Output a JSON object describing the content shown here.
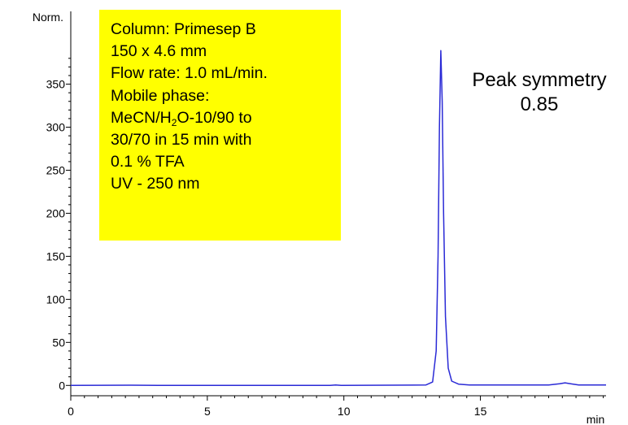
{
  "chart_data": {
    "type": "line",
    "title": "",
    "xlabel": "min",
    "ylabel": "Norm.",
    "xlim": [
      0,
      19.6
    ],
    "ylim": [
      -12,
      410
    ],
    "x_ticks": [
      "0",
      "5",
      "10",
      "15"
    ],
    "y_ticks": [
      "0",
      "50",
      "100",
      "150",
      "200",
      "250",
      "300",
      "350"
    ],
    "grid": false,
    "line_color": "#2a2ad6",
    "series": [
      {
        "values": [
          {
            "x": 0.0,
            "y": 0.0
          },
          {
            "x": 2.2,
            "y": 0.3
          },
          {
            "x": 3.2,
            "y": 0.0
          },
          {
            "x": 9.5,
            "y": 0.0
          },
          {
            "x": 9.7,
            "y": 0.5
          },
          {
            "x": 9.9,
            "y": 0.0
          },
          {
            "x": 13.0,
            "y": 0.5
          },
          {
            "x": 13.25,
            "y": 4.0
          },
          {
            "x": 13.38,
            "y": 40.0
          },
          {
            "x": 13.45,
            "y": 150.0
          },
          {
            "x": 13.5,
            "y": 300.0
          },
          {
            "x": 13.55,
            "y": 389.0
          },
          {
            "x": 13.6,
            "y": 330.0
          },
          {
            "x": 13.65,
            "y": 200.0
          },
          {
            "x": 13.72,
            "y": 80.0
          },
          {
            "x": 13.82,
            "y": 20.0
          },
          {
            "x": 13.95,
            "y": 5.0
          },
          {
            "x": 14.2,
            "y": 1.5
          },
          {
            "x": 14.6,
            "y": 0.5
          },
          {
            "x": 16.0,
            "y": 0.5
          },
          {
            "x": 17.5,
            "y": 0.5
          },
          {
            "x": 17.9,
            "y": 2.0
          },
          {
            "x": 18.1,
            "y": 3.0
          },
          {
            "x": 18.3,
            "y": 2.0
          },
          {
            "x": 18.6,
            "y": 0.5
          },
          {
            "x": 19.6,
            "y": 0.5
          }
        ]
      }
    ],
    "info_box": {
      "background": "#ffff00",
      "lines": [
        {
          "text": "Column: Primesep B"
        },
        {
          "text": "150 x 4.6 mm"
        },
        {
          "text": "Flow rate: 1.0 mL/min."
        },
        {
          "text": "Mobile phase:"
        },
        {
          "pre": "MeCN/H",
          "sub": "2",
          "post": "O-10/90 to"
        },
        {
          "text": "30/70 in 15 min  with"
        },
        {
          "text": "0.1 % TFA"
        },
        {
          "text": "UV - 250 nm"
        }
      ]
    },
    "annotation": [
      "Peak symmetry",
      "0.85"
    ]
  }
}
